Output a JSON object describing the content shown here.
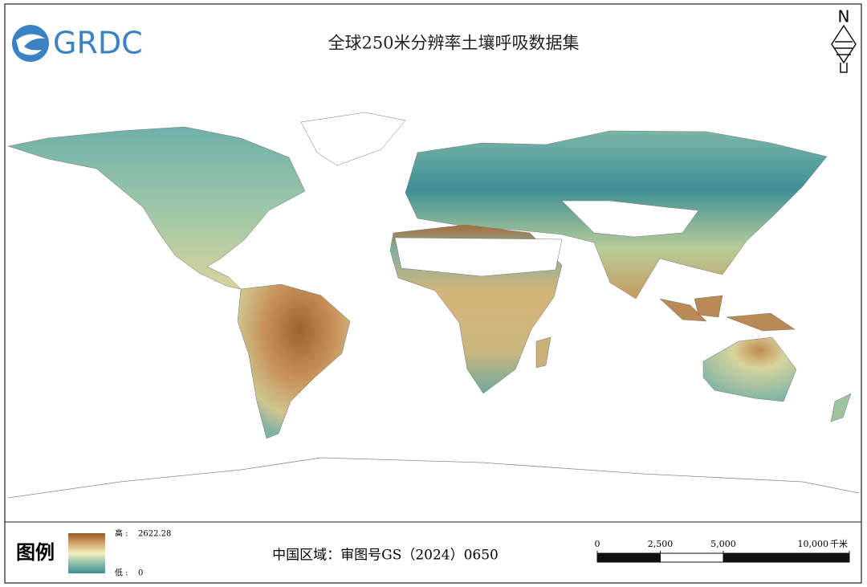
{
  "header": {
    "logo": "GRDC",
    "title": "全球250米分辨率土壤呼吸数据集",
    "north": "N"
  },
  "legend": {
    "title": "图例",
    "high_label": "高 :",
    "high": 2622.28,
    "low_label": "低 :",
    "low": 0
  },
  "footer": {
    "note": "中国区域：审图号GS（2024）0650"
  },
  "scale_bar": {
    "ticks": [
      0,
      {
        "value": 2500,
        "label": "2,500"
      },
      {
        "value": 5000,
        "label": "5,000"
      },
      {
        "value": 10000,
        "label": "10,000"
      }
    ],
    "unit": "千米"
  }
}
